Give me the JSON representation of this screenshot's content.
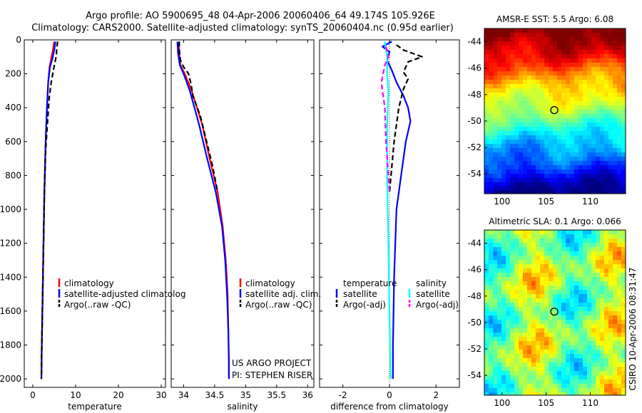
{
  "figure": {
    "title_line1": "Argo profile: AO 5900695_48 04-Apr-2006 20060406_64 49.174S 105.926E",
    "title_line2": "Climatology: CARS2000. Satellite-adjusted climatology: synTS_20060404.nc (0.95d earlier)",
    "side_label": "CSIRO 10-Apr-2006 08:31:47",
    "project_line1": "US ARGO PROJECT",
    "project_line2": "PI: STEPHEN RISER"
  },
  "colors": {
    "climatology": "#ff0000",
    "satellite": "#0000ff",
    "argo": "#000000",
    "salinity_satellite": "#00ffff",
    "salinity_argo": "#ff00ff"
  },
  "chart_data": [
    {
      "type": "line",
      "panel": "temperature",
      "xlabel": "temperature",
      "xlim": [
        -2,
        31
      ],
      "ylim": [
        2050,
        0
      ],
      "y_reversed": true,
      "x_ticks": [
        "0",
        "10",
        "20",
        "30"
      ],
      "y_ticks": [
        "0",
        "200",
        "400",
        "600",
        "800",
        "1000",
        "1200",
        "1400",
        "1600",
        "1800",
        "2000"
      ],
      "legend": [
        "climatology",
        "satellite-adjusted climatolog",
        "Argo(..raw -QC)"
      ],
      "legend_position": "lower-center",
      "series": [
        {
          "name": "climatology",
          "color": "#ff0000",
          "dash": "solid",
          "points": [
            [
              5.0,
              10
            ],
            [
              4.7,
              60
            ],
            [
              4.3,
              110
            ],
            [
              3.9,
              160
            ],
            [
              3.6,
              250
            ],
            [
              3.3,
              400
            ],
            [
              3.0,
              600
            ],
            [
              2.7,
              900
            ],
            [
              2.5,
              1200
            ],
            [
              2.3,
              1500
            ],
            [
              2.1,
              1800
            ],
            [
              2.0,
              2000
            ]
          ]
        },
        {
          "name": "satellite-adjusted climatolog",
          "color": "#0000ff",
          "dash": "solid",
          "points": [
            [
              5.3,
              10
            ],
            [
              5.0,
              60
            ],
            [
              4.6,
              110
            ],
            [
              4.0,
              160
            ],
            [
              3.6,
              250
            ],
            [
              3.3,
              400
            ],
            [
              3.0,
              600
            ],
            [
              2.7,
              900
            ],
            [
              2.5,
              1200
            ],
            [
              2.3,
              1500
            ],
            [
              2.1,
              1800
            ],
            [
              2.0,
              2000
            ]
          ]
        },
        {
          "name": "Argo(..raw -QC)",
          "color": "#000000",
          "dash": "dashed",
          "points": [
            [
              5.8,
              10
            ],
            [
              5.6,
              50
            ],
            [
              5.5,
              90
            ],
            [
              5.2,
              130
            ],
            [
              4.8,
              180
            ],
            [
              4.3,
              250
            ],
            [
              3.8,
              350
            ],
            [
              3.4,
              500
            ],
            [
              3.0,
              650
            ],
            [
              2.7,
              900
            ],
            [
              2.5,
              1200
            ],
            [
              2.3,
              1500
            ],
            [
              2.1,
              1800
            ],
            [
              2.0,
              2000
            ]
          ]
        }
      ]
    },
    {
      "type": "line",
      "panel": "salinity",
      "xlabel": "salinity",
      "xlim": [
        33.8,
        36.1
      ],
      "ylim": [
        2050,
        0
      ],
      "y_reversed": true,
      "x_ticks": [
        "34",
        "34.5",
        "35",
        "35.5",
        "36"
      ],
      "legend": [
        "climatology",
        "satellite adj. clim.",
        "Argo(..raw -QC)"
      ],
      "legend_position": "lower-right",
      "series": [
        {
          "name": "climatology",
          "color": "#ff0000",
          "dash": "solid",
          "points": [
            [
              33.92,
              10
            ],
            [
              33.93,
              80
            ],
            [
              33.95,
              150
            ],
            [
              34.02,
              200
            ],
            [
              34.13,
              300
            ],
            [
              34.3,
              500
            ],
            [
              34.42,
              700
            ],
            [
              34.55,
              900
            ],
            [
              34.63,
              1100
            ],
            [
              34.68,
              1300
            ],
            [
              34.71,
              1500
            ],
            [
              34.72,
              1700
            ],
            [
              34.73,
              1900
            ],
            [
              34.73,
              2000
            ]
          ]
        },
        {
          "name": "satellite adj. clim.",
          "color": "#0000ff",
          "dash": "solid",
          "points": [
            [
              33.9,
              10
            ],
            [
              33.91,
              80
            ],
            [
              33.94,
              150
            ],
            [
              34.0,
              200
            ],
            [
              34.1,
              300
            ],
            [
              34.25,
              500
            ],
            [
              34.38,
              700
            ],
            [
              34.52,
              900
            ],
            [
              34.62,
              1100
            ],
            [
              34.67,
              1300
            ],
            [
              34.7,
              1500
            ],
            [
              34.72,
              1700
            ],
            [
              34.73,
              1900
            ],
            [
              34.73,
              2000
            ]
          ]
        },
        {
          "name": "Argo(..raw -QC)",
          "color": "#000000",
          "dash": "dashed",
          "points": [
            [
              33.93,
              10
            ],
            [
              33.93,
              60
            ],
            [
              33.95,
              120
            ],
            [
              34.0,
              160
            ],
            [
              34.08,
              200
            ],
            [
              34.12,
              260
            ],
            [
              34.15,
              330
            ],
            [
              34.27,
              450
            ],
            [
              34.37,
              600
            ],
            [
              34.47,
              750
            ],
            [
              34.55,
              900
            ]
          ]
        }
      ]
    },
    {
      "type": "line",
      "panel": "difference",
      "xlabel": "difference from climatology",
      "xlim": [
        -3,
        3
      ],
      "ylim": [
        2050,
        0
      ],
      "y_reversed": true,
      "x_ticks": [
        "-2",
        "0",
        "2"
      ],
      "legend_headers": [
        "temperature",
        "salinity"
      ],
      "legend": [
        "satellite",
        "Argo(-adj)",
        "satellite",
        "Argo(-adj)"
      ],
      "legend_position": "lower-center",
      "series": [
        {
          "name": "satellite",
          "group": "temperature",
          "color": "#0000ff",
          "dash": "solid",
          "points": [
            [
              0.1,
              10
            ],
            [
              -0.3,
              40
            ],
            [
              0.0,
              70
            ],
            [
              -0.1,
              120
            ],
            [
              0.1,
              180
            ],
            [
              0.3,
              250
            ],
            [
              0.6,
              330
            ],
            [
              0.8,
              400
            ],
            [
              0.9,
              480
            ],
            [
              0.7,
              600
            ],
            [
              0.5,
              800
            ],
            [
              0.3,
              1000
            ],
            [
              0.2,
              1400
            ],
            [
              0.15,
              1800
            ],
            [
              0.15,
              2000
            ]
          ]
        },
        {
          "name": "Argo(-adj)",
          "group": "temperature",
          "color": "#000000",
          "dash": "dashed",
          "points": [
            [
              0.3,
              30
            ],
            [
              0.6,
              60
            ],
            [
              1.0,
              80
            ],
            [
              1.4,
              100
            ],
            [
              0.8,
              130
            ],
            [
              0.6,
              190
            ],
            [
              0.8,
              230
            ],
            [
              0.6,
              290
            ],
            [
              0.4,
              400
            ],
            [
              0.2,
              600
            ],
            [
              0.0,
              900
            ]
          ]
        },
        {
          "name": "satellite",
          "group": "salinity",
          "color": "#00ffff",
          "dash": "solid",
          "points": [
            [
              -0.2,
              10
            ],
            [
              -0.1,
              100
            ],
            [
              -0.1,
              200
            ],
            [
              -0.05,
              300
            ],
            [
              -0.1,
              500
            ],
            [
              -0.1,
              800
            ],
            [
              -0.05,
              1200
            ],
            [
              0.0,
              1600
            ],
            [
              0.05,
              2000
            ]
          ]
        },
        {
          "name": "Argo(-adj)",
          "group": "salinity",
          "color": "#ff00ff",
          "dash": "dashed",
          "points": [
            [
              -0.15,
              40
            ],
            [
              -0.05,
              100
            ],
            [
              -0.2,
              150
            ],
            [
              -0.35,
              250
            ],
            [
              -0.2,
              400
            ],
            [
              -0.15,
              600
            ],
            [
              -0.05,
              800
            ],
            [
              0.0,
              900
            ]
          ]
        }
      ]
    },
    {
      "type": "heatmap",
      "panel": "sst_map",
      "title": "AMSR-E SST: 5.5 Argo: 6.08",
      "xlim": [
        98,
        114
      ],
      "ylim": [
        -55.5,
        -43
      ],
      "x_ticks": [
        "100",
        "105",
        "110"
      ],
      "y_ticks": [
        "-44",
        "-46",
        "-48",
        "-50",
        "-52",
        "-54"
      ],
      "marker": {
        "lon": 105.926,
        "lat": -49.174
      }
    },
    {
      "type": "heatmap",
      "panel": "sla_map",
      "title": "Altimetric SLA: 0.1 Argo: 0.066",
      "xlim": [
        98,
        114
      ],
      "ylim": [
        -55.5,
        -43
      ],
      "x_ticks": [
        "100",
        "105",
        "110"
      ],
      "y_ticks": [
        "-44",
        "-46",
        "-48",
        "-50",
        "-52",
        "-54"
      ],
      "marker": {
        "lon": 105.926,
        "lat": -49.174
      }
    }
  ]
}
